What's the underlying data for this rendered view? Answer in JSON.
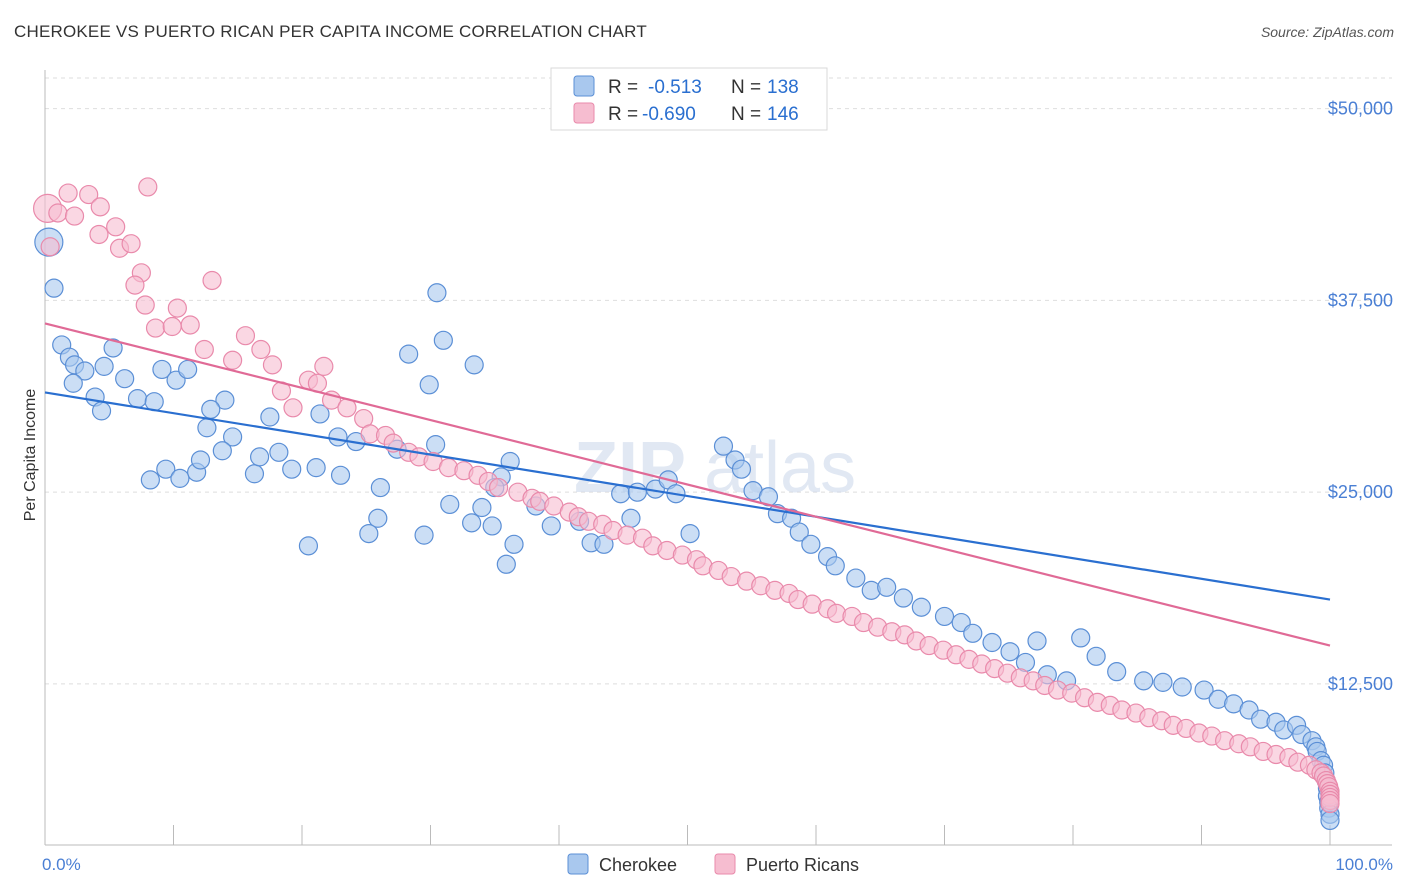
{
  "title": "CHEROKEE VS PUERTO RICAN PER CAPITA INCOME CORRELATION CHART",
  "source": "Source: ZipAtlas.com",
  "colors": {
    "cherokee_fill": "#a9c8ee",
    "cherokee_stroke": "#5b8fd6",
    "cherokee_line": "#2a6fd0",
    "puerto_fill": "#f6bdd0",
    "puerto_stroke": "#e98aab",
    "puerto_line": "#e06a96",
    "axis_text": "#4a7fd4",
    "grid": "#dedede"
  },
  "legend_top": {
    "rows": [
      {
        "r_label": "R =",
        "r_value": "-0.513",
        "n_label": "N =",
        "n_value": "138"
      },
      {
        "r_label": "R =",
        "r_value": "-0.690",
        "n_label": "N =",
        "n_value": "146"
      }
    ]
  },
  "legend_bottom": [
    "Cherokee",
    "Puerto Ricans"
  ],
  "watermark": {
    "zip": "ZIP",
    "atlas": "atlas"
  },
  "chart_data": {
    "type": "scatter",
    "title": "CHEROKEE VS PUERTO RICAN PER CAPITA INCOME CORRELATION CHART",
    "xlabel": "",
    "ylabel": "Per Capita Income",
    "xlim": [
      0,
      100
    ],
    "ylim": [
      2000,
      52000
    ],
    "x_tick_labels": [
      "0.0%",
      "100.0%"
    ],
    "y_ticks": [
      12500,
      25000,
      37500,
      50000
    ],
    "y_tick_labels": [
      "$12,500",
      "$25,000",
      "$37,500",
      "$50,000"
    ],
    "series": [
      {
        "name": "Cherokee",
        "r": -0.513,
        "n": 138,
        "trend": {
          "x": [
            0,
            100
          ],
          "y": [
            31500,
            18000
          ]
        },
        "points": [
          [
            0.3,
            41300
          ],
          [
            0.7,
            38300
          ],
          [
            1.3,
            34600
          ],
          [
            1.9,
            33800
          ],
          [
            2.3,
            33300
          ],
          [
            3.1,
            32900
          ],
          [
            2.2,
            32100
          ],
          [
            4.6,
            33200
          ],
          [
            3.9,
            31200
          ],
          [
            4.4,
            30300
          ],
          [
            5.3,
            34400
          ],
          [
            6.2,
            32400
          ],
          [
            7.2,
            31100
          ],
          [
            8.5,
            30900
          ],
          [
            9.1,
            33000
          ],
          [
            10.2,
            32300
          ],
          [
            11.1,
            33000
          ],
          [
            14.0,
            31000
          ],
          [
            12.6,
            29200
          ],
          [
            9.4,
            26500
          ],
          [
            8.2,
            25800
          ],
          [
            11.8,
            26300
          ],
          [
            10.5,
            25900
          ],
          [
            12.1,
            27100
          ],
          [
            17.5,
            29900
          ],
          [
            21.4,
            30100
          ],
          [
            24.2,
            28300
          ],
          [
            23.0,
            26100
          ],
          [
            25.9,
            23300
          ],
          [
            19.2,
            26500
          ],
          [
            20.5,
            21500
          ],
          [
            31.5,
            24200
          ],
          [
            28.3,
            34000
          ],
          [
            31.0,
            34900
          ],
          [
            33.4,
            33300
          ],
          [
            30.4,
            28100
          ],
          [
            29.9,
            32000
          ],
          [
            30.5,
            38000
          ],
          [
            27.4,
            27800
          ],
          [
            26.1,
            25300
          ],
          [
            29.5,
            22200
          ],
          [
            25.2,
            22300
          ],
          [
            22.8,
            28600
          ],
          [
            21.1,
            26600
          ],
          [
            18.2,
            27600
          ],
          [
            16.3,
            26200
          ],
          [
            14.6,
            28600
          ],
          [
            16.7,
            27300
          ],
          [
            13.8,
            27700
          ],
          [
            12.9,
            30400
          ],
          [
            36.2,
            27000
          ],
          [
            35.5,
            26000
          ],
          [
            35.0,
            25300
          ],
          [
            34.0,
            24000
          ],
          [
            33.2,
            23000
          ],
          [
            34.8,
            22800
          ],
          [
            36.5,
            21600
          ],
          [
            35.9,
            20300
          ],
          [
            38.2,
            24100
          ],
          [
            39.4,
            22800
          ],
          [
            41.6,
            23100
          ],
          [
            42.5,
            21700
          ],
          [
            43.5,
            21600
          ],
          [
            44.8,
            24900
          ],
          [
            45.6,
            23300
          ],
          [
            46.1,
            25000
          ],
          [
            47.5,
            25200
          ],
          [
            48.5,
            25800
          ],
          [
            49.1,
            24900
          ],
          [
            50.2,
            22300
          ],
          [
            52.8,
            28000
          ],
          [
            53.7,
            27100
          ],
          [
            54.2,
            26500
          ],
          [
            55.1,
            25100
          ],
          [
            56.3,
            24700
          ],
          [
            57.0,
            23600
          ],
          [
            58.1,
            23300
          ],
          [
            58.7,
            22400
          ],
          [
            59.6,
            21600
          ],
          [
            60.9,
            20800
          ],
          [
            61.5,
            20200
          ],
          [
            63.1,
            19400
          ],
          [
            64.3,
            18600
          ],
          [
            65.5,
            18800
          ],
          [
            66.8,
            18100
          ],
          [
            68.2,
            17500
          ],
          [
            70.0,
            16900
          ],
          [
            71.3,
            16500
          ],
          [
            72.2,
            15800
          ],
          [
            73.7,
            15200
          ],
          [
            75.1,
            14600
          ],
          [
            76.3,
            13900
          ],
          [
            77.2,
            15300
          ],
          [
            78.0,
            13100
          ],
          [
            79.5,
            12700
          ],
          [
            80.6,
            15500
          ],
          [
            81.8,
            14300
          ],
          [
            83.4,
            13300
          ],
          [
            85.5,
            12700
          ],
          [
            87.0,
            12600
          ],
          [
            88.5,
            12300
          ],
          [
            90.2,
            12100
          ],
          [
            91.3,
            11500
          ],
          [
            92.5,
            11200
          ],
          [
            93.7,
            10800
          ],
          [
            94.6,
            10200
          ],
          [
            95.8,
            10000
          ],
          [
            96.4,
            9500
          ],
          [
            97.4,
            9800
          ],
          [
            97.8,
            9200
          ],
          [
            98.6,
            8800
          ],
          [
            98.9,
            8400
          ],
          [
            99.0,
            8100
          ],
          [
            99.3,
            7500
          ],
          [
            99.5,
            7200
          ],
          [
            99.6,
            6700
          ],
          [
            99.7,
            6200
          ],
          [
            99.8,
            5700
          ],
          [
            99.8,
            5200
          ],
          [
            99.9,
            4800
          ],
          [
            99.9,
            4400
          ],
          [
            100.0,
            4000
          ],
          [
            100.0,
            3600
          ]
        ]
      },
      {
        "name": "Puerto Ricans",
        "r": -0.69,
        "n": 146,
        "trend": {
          "x": [
            0,
            100
          ],
          "y": [
            36000,
            15000
          ]
        },
        "points": [
          [
            0.2,
            43500
          ],
          [
            0.4,
            41000
          ],
          [
            1.0,
            43200
          ],
          [
            1.8,
            44500
          ],
          [
            2.3,
            43000
          ],
          [
            3.4,
            44400
          ],
          [
            4.3,
            43600
          ],
          [
            4.2,
            41800
          ],
          [
            5.5,
            42300
          ],
          [
            5.8,
            40900
          ],
          [
            6.7,
            41200
          ],
          [
            7.5,
            39300
          ],
          [
            7.0,
            38500
          ],
          [
            8.0,
            44900
          ],
          [
            7.8,
            37200
          ],
          [
            8.6,
            35700
          ],
          [
            9.9,
            35800
          ],
          [
            11.3,
            35900
          ],
          [
            10.3,
            37000
          ],
          [
            13.0,
            38800
          ],
          [
            12.4,
            34300
          ],
          [
            14.6,
            33600
          ],
          [
            15.6,
            35200
          ],
          [
            16.8,
            34300
          ],
          [
            17.7,
            33300
          ],
          [
            18.4,
            31600
          ],
          [
            19.3,
            30500
          ],
          [
            20.5,
            32300
          ],
          [
            21.7,
            33200
          ],
          [
            21.2,
            32100
          ],
          [
            22.3,
            31000
          ],
          [
            23.5,
            30500
          ],
          [
            24.8,
            29800
          ],
          [
            25.3,
            28800
          ],
          [
            26.5,
            28700
          ],
          [
            27.1,
            28200
          ],
          [
            28.3,
            27600
          ],
          [
            29.1,
            27300
          ],
          [
            30.2,
            27000
          ],
          [
            31.4,
            26600
          ],
          [
            32.6,
            26400
          ],
          [
            33.7,
            26100
          ],
          [
            34.5,
            25700
          ],
          [
            35.3,
            25300
          ],
          [
            36.8,
            25000
          ],
          [
            37.9,
            24600
          ],
          [
            38.5,
            24400
          ],
          [
            39.6,
            24100
          ],
          [
            40.8,
            23700
          ],
          [
            41.5,
            23400
          ],
          [
            42.3,
            23100
          ],
          [
            43.4,
            22900
          ],
          [
            44.2,
            22500
          ],
          [
            45.3,
            22200
          ],
          [
            46.5,
            22000
          ],
          [
            47.3,
            21500
          ],
          [
            48.4,
            21200
          ],
          [
            49.6,
            20900
          ],
          [
            50.7,
            20600
          ],
          [
            51.2,
            20200
          ],
          [
            52.4,
            19900
          ],
          [
            53.4,
            19500
          ],
          [
            54.6,
            19200
          ],
          [
            55.7,
            18900
          ],
          [
            56.8,
            18600
          ],
          [
            57.9,
            18400
          ],
          [
            58.6,
            18000
          ],
          [
            59.7,
            17700
          ],
          [
            60.9,
            17400
          ],
          [
            61.6,
            17100
          ],
          [
            62.8,
            16900
          ],
          [
            63.7,
            16500
          ],
          [
            64.8,
            16200
          ],
          [
            65.9,
            15900
          ],
          [
            66.9,
            15700
          ],
          [
            67.8,
            15300
          ],
          [
            68.8,
            15000
          ],
          [
            69.9,
            14700
          ],
          [
            70.9,
            14400
          ],
          [
            71.9,
            14100
          ],
          [
            72.9,
            13800
          ],
          [
            73.9,
            13500
          ],
          [
            74.9,
            13200
          ],
          [
            75.9,
            12900
          ],
          [
            76.9,
            12700
          ],
          [
            77.8,
            12400
          ],
          [
            78.8,
            12100
          ],
          [
            79.9,
            11900
          ],
          [
            80.9,
            11600
          ],
          [
            81.9,
            11300
          ],
          [
            82.9,
            11100
          ],
          [
            83.8,
            10800
          ],
          [
            84.9,
            10600
          ],
          [
            85.9,
            10300
          ],
          [
            86.9,
            10100
          ],
          [
            87.8,
            9800
          ],
          [
            88.8,
            9600
          ],
          [
            89.8,
            9300
          ],
          [
            90.8,
            9100
          ],
          [
            91.8,
            8800
          ],
          [
            92.9,
            8600
          ],
          [
            93.8,
            8400
          ],
          [
            94.8,
            8100
          ],
          [
            95.8,
            7900
          ],
          [
            96.8,
            7700
          ],
          [
            97.5,
            7400
          ],
          [
            98.4,
            7200
          ],
          [
            98.9,
            6900
          ],
          [
            99.3,
            6700
          ],
          [
            99.5,
            6500
          ],
          [
            99.7,
            6200
          ],
          [
            99.8,
            6000
          ],
          [
            99.9,
            5800
          ],
          [
            100.0,
            5500
          ],
          [
            100.0,
            5300
          ],
          [
            100.0,
            5100
          ],
          [
            100.0,
            4900
          ],
          [
            100.0,
            4700
          ]
        ]
      }
    ]
  }
}
